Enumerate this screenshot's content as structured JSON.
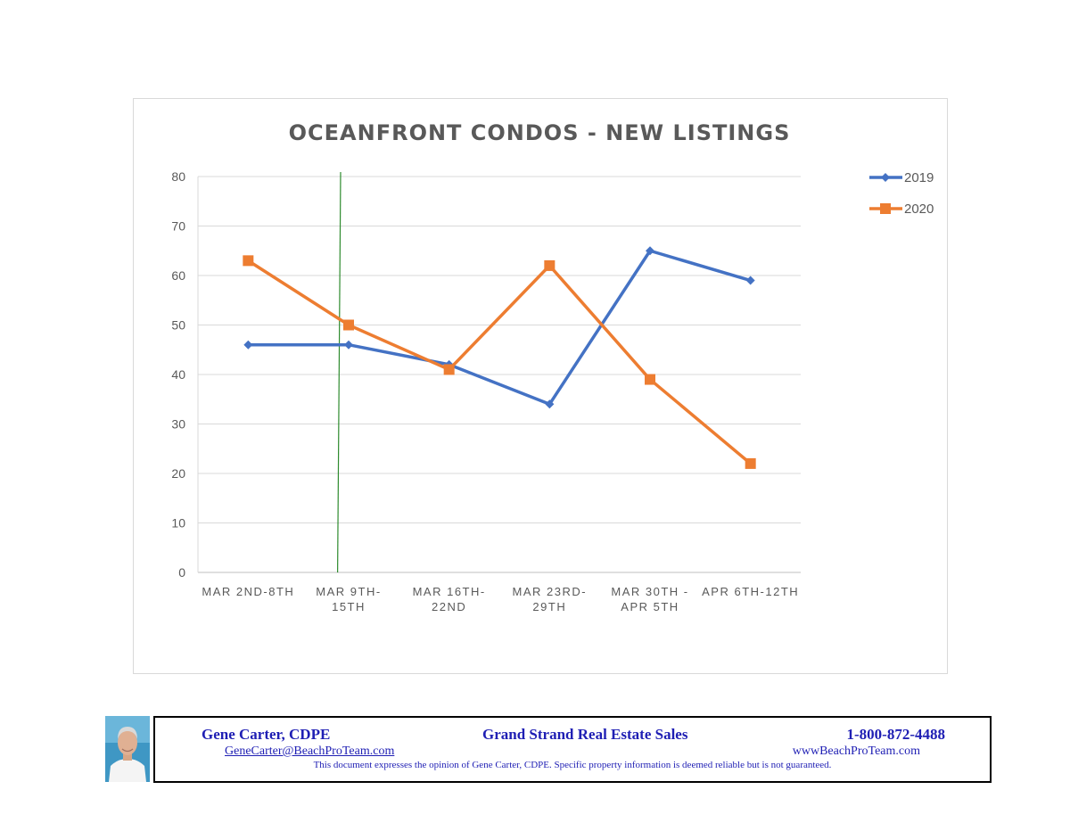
{
  "chart_data": {
    "type": "line",
    "title": "OCEANFRONT CONDOS - NEW LISTINGS",
    "categories": [
      [
        "MAR 2ND-8TH"
      ],
      [
        "MAR 9TH-",
        "15TH"
      ],
      [
        "MAR 16TH-",
        "22ND"
      ],
      [
        "MAR 23RD-",
        "29TH"
      ],
      [
        "MAR 30TH -",
        "APR 5TH"
      ],
      [
        "APR 6TH-12TH"
      ]
    ],
    "series": [
      {
        "name": "2019",
        "values": [
          46,
          46,
          42,
          34,
          65,
          59
        ],
        "color": "#4472c4",
        "marker": "diamond"
      },
      {
        "name": "2020",
        "values": [
          63,
          50,
          41,
          62,
          39,
          22
        ],
        "color": "#ed7d31",
        "marker": "square"
      }
    ],
    "ylim": [
      0,
      80
    ],
    "yticks": [
      0,
      10,
      20,
      30,
      40,
      50,
      60,
      70,
      80
    ],
    "grid": true,
    "legend": "right",
    "annotation_line_color": "#2e8b2e"
  },
  "footer": {
    "name": "Gene Carter, CDPE",
    "company": "Grand Strand Real Estate Sales",
    "phone": "1-800-872-4488",
    "email": "GeneCarter@BeachProTeam.com",
    "website": "wwwBeachProTeam.com",
    "disclaimer": "This document expresses the opinion of Gene Carter, CDPE.  Specific property information is deemed reliable but is not guaranteed."
  }
}
